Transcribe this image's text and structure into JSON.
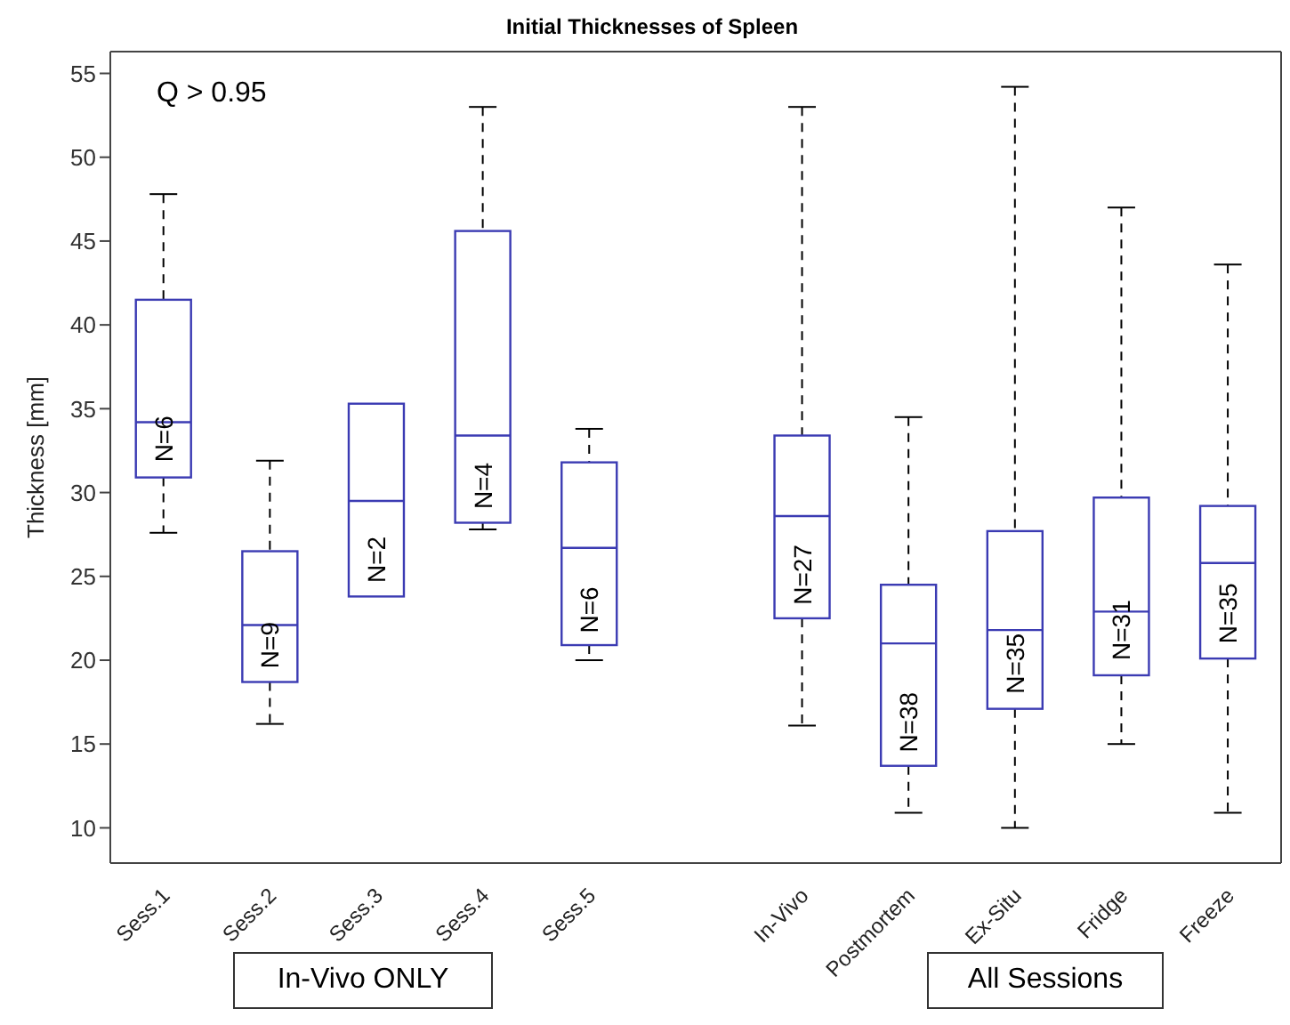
{
  "chart_data": {
    "type": "box",
    "title": "Initial Thicknesses of Spleen",
    "ylabel": "Thickness [mm]",
    "categories": [
      "Sess.1",
      "Sess.2",
      "Sess.3",
      "Sess.4",
      "Sess.5",
      null,
      "In-Vivo",
      "Postmortem",
      "Ex-Situ",
      "Fridge",
      "Freeze"
    ],
    "series": [
      {
        "color": "#3b3bb3",
        "boxes": [
          {
            "low": 27.6,
            "q1": 30.9,
            "median": 34.2,
            "q3": 41.5,
            "high": 47.8
          },
          {
            "low": 16.2,
            "q1": 18.7,
            "median": 22.1,
            "q3": 26.5,
            "high": 31.9
          },
          {
            "low": 23.8,
            "q1": 23.8,
            "median": 29.5,
            "q3": 35.3,
            "high": 35.3
          },
          {
            "low": 27.8,
            "q1": 28.2,
            "median": 33.4,
            "q3": 45.6,
            "high": 53.0
          },
          {
            "low": 20.0,
            "q1": 20.9,
            "median": 26.7,
            "q3": 31.8,
            "high": 33.8
          },
          null,
          {
            "low": 16.1,
            "q1": 22.5,
            "median": 28.6,
            "q3": 33.4,
            "high": 53.0
          },
          {
            "low": 10.9,
            "q1": 13.7,
            "median": 21.0,
            "q3": 24.5,
            "high": 34.5
          },
          {
            "low": 10.0,
            "q1": 17.1,
            "median": 21.8,
            "q3": 27.7,
            "high": 54.2
          },
          {
            "low": 15.0,
            "q1": 19.1,
            "median": 22.9,
            "q3": 29.7,
            "high": 47.0
          },
          {
            "low": 10.9,
            "q1": 20.1,
            "median": 25.8,
            "q3": 29.2,
            "high": 43.6
          }
        ]
      }
    ],
    "ylim": [
      7.9,
      56.3
    ],
    "yticks": [
      10,
      15,
      20,
      25,
      30,
      35,
      40,
      45,
      50,
      55
    ],
    "grid": false,
    "legend": false,
    "annotations": [
      "Q > 0.95",
      "In-Vivo ONLY",
      "All Sessions",
      {
        "text": "N=6",
        "x": "Sess.1",
        "y": 33.2
      },
      {
        "text": "N=9",
        "x": "Sess.2",
        "y": 20.9
      },
      {
        "text": "N=2",
        "x": "Sess.3",
        "y": 26.0
      },
      {
        "text": "N=4",
        "x": "Sess.4",
        "y": 30.4
      },
      {
        "text": "N=6",
        "x": "Sess.5",
        "y": 23.0
      },
      {
        "text": "N=27",
        "x": "In-Vivo",
        "y": 25.1
      },
      {
        "text": "N=38",
        "x": "Postmortem",
        "y": 16.3
      },
      {
        "text": "N=35",
        "x": "Ex-Situ",
        "y": 19.8
      },
      {
        "text": "N=31",
        "x": "Fridge",
        "y": 21.8
      },
      {
        "text": "N=35",
        "x": "Freeze",
        "y": 22.8
      }
    ]
  }
}
